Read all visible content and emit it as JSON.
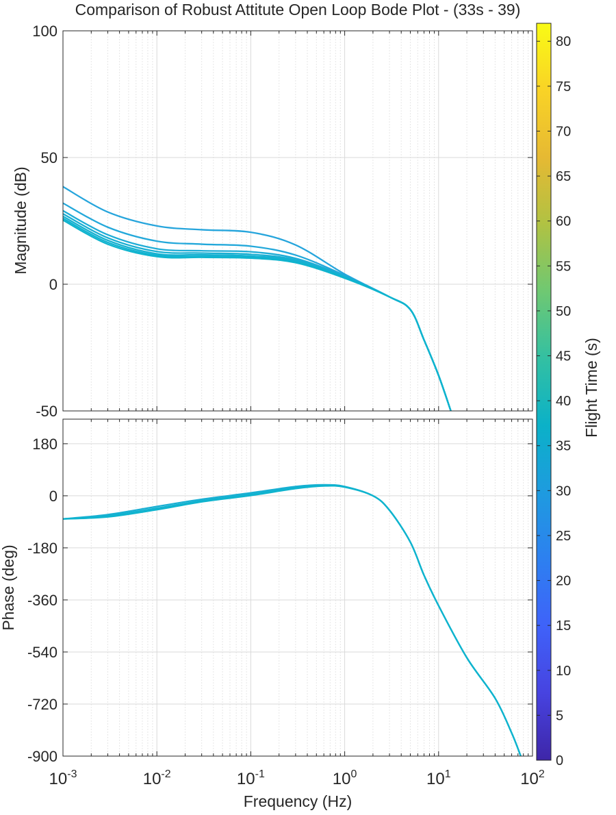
{
  "chart_data": {
    "type": "line",
    "title": "Comparison of Robust Attitute Open Loop Bode Plot - (33s - 39)",
    "xlabel": "Frequency  (Hz)",
    "xscale": "log",
    "xlim": [
      0.001,
      100
    ],
    "x_ticks": [
      "10-3",
      "10-2",
      "10-1",
      "100",
      "101",
      "102"
    ],
    "x_tick_base": "10",
    "x_tick_exponents": [
      "-3",
      "-2",
      "-1",
      "0",
      "1",
      "2"
    ],
    "grid": true,
    "colors": {
      "curve_main": "#12B2D0",
      "curve_light": "#26A5DC",
      "axes": "#262626",
      "grid": "#d9d9d9"
    },
    "subplots": [
      {
        "name": "magnitude",
        "ylabel": "Magnitude (dB)",
        "ylim": [
          -50,
          100
        ],
        "y_ticks": [
          "100",
          "50",
          "0",
          "-50"
        ],
        "series": [
          {
            "color": "#26A5DC",
            "x": [
              0.001,
              0.003,
              0.01,
              0.03,
              0.1,
              0.3,
              1,
              3,
              5,
              7,
              10,
              13.5
            ],
            "y": [
              38.5,
              28.5,
              23.0,
              21.5,
              20.5,
              15.5,
              4.0,
              -5.0,
              -10.0,
              -22.0,
              -36.0,
              -50.0
            ]
          },
          {
            "color": "#23A8DA",
            "x": [
              0.001,
              0.003,
              0.01,
              0.03,
              0.1,
              0.3,
              1,
              3,
              5,
              7,
              10,
              13.5
            ],
            "y": [
              32.0,
              22.5,
              17.0,
              15.8,
              15.0,
              11.5,
              3.5,
              -5.0,
              -10.0,
              -22.0,
              -36.0,
              -50.0
            ]
          },
          {
            "color": "#1EACD6",
            "x": [
              0.001,
              0.003,
              0.01,
              0.03,
              0.1,
              0.3,
              1,
              3,
              5,
              7,
              10,
              13.5
            ],
            "y": [
              29.0,
              19.5,
              14.0,
              13.2,
              12.8,
              10.2,
              3.2,
              -5.0,
              -10.0,
              -22.0,
              -36.0,
              -50.0
            ]
          },
          {
            "color": "#19AFD3",
            "x": [
              0.001,
              0.003,
              0.01,
              0.03,
              0.1,
              0.3,
              1,
              3,
              5,
              7,
              10,
              13.5
            ],
            "y": [
              27.8,
              18.3,
              12.9,
              12.3,
              11.8,
              9.6,
              3.0,
              -5.0,
              -10.0,
              -22.0,
              -36.0,
              -50.0
            ]
          },
          {
            "color": "#15B1D1",
            "x": [
              0.001,
              0.003,
              0.01,
              0.03,
              0.1,
              0.3,
              1,
              3,
              5,
              7,
              10,
              13.5
            ],
            "y": [
              26.8,
              17.3,
              12.0,
              11.6,
              11.1,
              9.2,
              2.8,
              -5.0,
              -10.0,
              -22.0,
              -36.0,
              -50.0
            ]
          },
          {
            "color": "#12B2D0",
            "x": [
              0.001,
              0.003,
              0.01,
              0.03,
              0.1,
              0.3,
              1,
              3,
              5,
              7,
              10,
              13.5
            ],
            "y": [
              26.0,
              16.5,
              11.4,
              11.0,
              10.6,
              8.8,
              2.6,
              -5.0,
              -10.0,
              -22.0,
              -36.0,
              -50.0
            ]
          },
          {
            "color": "#0FB4CE",
            "x": [
              0.001,
              0.003,
              0.01,
              0.03,
              0.1,
              0.3,
              1,
              3,
              5,
              7,
              10,
              13.5
            ],
            "y": [
              25.3,
              15.8,
              10.9,
              10.6,
              10.3,
              8.5,
              2.4,
              -5.0,
              -10.0,
              -22.0,
              -36.0,
              -50.0
            ]
          }
        ]
      },
      {
        "name": "phase",
        "ylabel": "Phase (deg)",
        "ylim": [
          -900,
          265
        ],
        "y_ticks": [
          "180",
          "0",
          "-180",
          "-360",
          "-540",
          "-720",
          "-900"
        ],
        "series": [
          {
            "color": "#19AFD3",
            "x": [
              0.001,
              0.003,
              0.01,
              0.03,
              0.1,
              0.3,
              0.6,
              1,
              2,
              3,
              5,
              7,
              10,
              20,
              40,
              60,
              75
            ],
            "y": [
              -80,
              -65,
              -37,
              -12,
              10,
              32,
              38,
              32,
              0,
              -50,
              -160,
              -275,
              -380,
              -560,
              -700,
              -820,
              -900
            ]
          },
          {
            "color": "#12B2D0",
            "x": [
              0.001,
              0.003,
              0.01,
              0.03,
              0.1,
              0.3,
              0.6,
              1,
              2,
              3,
              5,
              7,
              10,
              20,
              40,
              60,
              75
            ],
            "y": [
              -80,
              -69,
              -43,
              -17,
              5,
              28,
              36,
              31,
              0,
              -50,
              -160,
              -275,
              -380,
              -560,
              -700,
              -820,
              -900
            ]
          },
          {
            "color": "#0FB4CE",
            "x": [
              0.001,
              0.003,
              0.01,
              0.03,
              0.1,
              0.3,
              0.6,
              1,
              2,
              3,
              5,
              7,
              10,
              20,
              40,
              60,
              75
            ],
            "y": [
              -80,
              -73,
              -48,
              -21,
              1,
              25,
              34,
              30,
              0,
              -50,
              -160,
              -275,
              -380,
              -560,
              -700,
              -820,
              -900
            ]
          }
        ]
      }
    ],
    "colorbar": {
      "label": "Flight Time (s)",
      "range": [
        0,
        82
      ],
      "ticks": [
        "0",
        "5",
        "10",
        "15",
        "20",
        "25",
        "30",
        "35",
        "40",
        "45",
        "50",
        "55",
        "60",
        "65",
        "70",
        "75",
        "80"
      ],
      "colormap": "parula",
      "stops": [
        "#3E26A8",
        "#4743E0",
        "#3F62F9",
        "#2D80F0",
        "#1E9BDF",
        "#0BB1C8",
        "#33C0A2",
        "#6FC872",
        "#B0C243",
        "#E6B933",
        "#F9D326",
        "#F9FB15"
      ]
    }
  }
}
